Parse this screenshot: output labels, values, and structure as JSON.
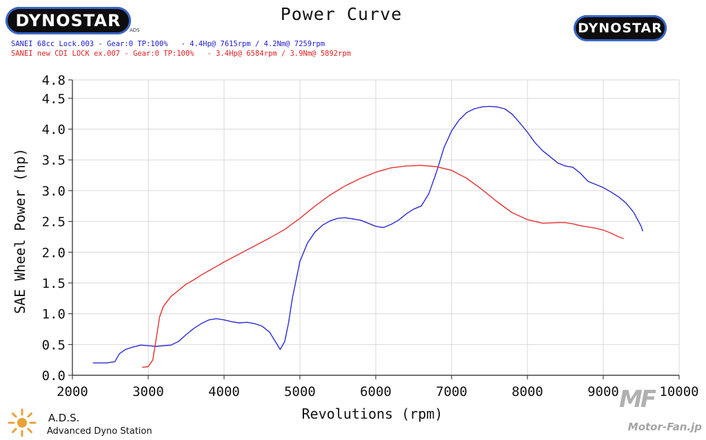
{
  "header": {
    "logo_left": "DYNOSTAR",
    "logo_left_sub": "ADS",
    "logo_right": "DYNOSTAR",
    "title": "Power Curve"
  },
  "legend": {
    "blue": "SANEI 68cc Lock.003 - Gear:0 TP:100%   - 4.4Hp@ 7615rpm / 4.2Nm@ 7259rpm",
    "red": "SANEI new CDI LOCK ex.007 - Gear:0 TP:100%   - 3.4Hp@ 6584rpm / 3.9Nm@ 5892rpm"
  },
  "footer": {
    "ads_title": "A.D.S.",
    "ads_sub": "Advanced Dyno Station",
    "watermark": "Motor-Fan.jp",
    "watermark_mark": "MF"
  },
  "chart_data": {
    "type": "line",
    "title": "Power Curve",
    "xlabel": "Revolutions (rpm)",
    "ylabel": "SAE Wheel Power (hp)",
    "xlim": [
      2000,
      10000
    ],
    "ylim": [
      0.0,
      4.8
    ],
    "xticks": [
      2000,
      3000,
      4000,
      5000,
      6000,
      7000,
      8000,
      9000,
      10000
    ],
    "yticks": [
      0.0,
      0.5,
      1.0,
      1.5,
      2.0,
      2.5,
      3.0,
      3.5,
      4.0,
      4.5,
      4.8
    ],
    "ytick_labels": [
      "0.0",
      "0.5",
      "1.0",
      "1.5",
      "2.0",
      "2.5",
      "3.0",
      "3.5",
      "4.0",
      "4.5",
      "4.8"
    ],
    "grid": true,
    "colors": {
      "blue": "#2b2bd0",
      "red": "#e83030"
    },
    "series": [
      {
        "color": "blue",
        "x": [
          2270,
          2450,
          2560,
          2620,
          2700,
          2800,
          2900,
          3000,
          3100,
          3300,
          3400,
          3500,
          3600,
          3700,
          3800,
          3900,
          4000,
          4100,
          4200,
          4300,
          4400,
          4500,
          4600,
          4700,
          4740,
          4800,
          4850,
          4900,
          5000,
          5100,
          5200,
          5300,
          5400,
          5500,
          5600,
          5700,
          5800,
          5900,
          6000,
          6100,
          6200,
          6300,
          6400,
          6500,
          6600,
          6700,
          6800,
          6900,
          7000,
          7100,
          7200,
          7300,
          7400,
          7500,
          7600,
          7700,
          7800,
          7900,
          8000,
          8100,
          8200,
          8300,
          8400,
          8500,
          8600,
          8700,
          8800,
          8900,
          9000,
          9100,
          9200,
          9300,
          9400,
          9500,
          9520
        ],
        "y": [
          0.2,
          0.2,
          0.22,
          0.35,
          0.42,
          0.46,
          0.49,
          0.48,
          0.47,
          0.49,
          0.55,
          0.66,
          0.76,
          0.84,
          0.9,
          0.92,
          0.9,
          0.87,
          0.85,
          0.86,
          0.84,
          0.8,
          0.7,
          0.5,
          0.42,
          0.55,
          0.85,
          1.25,
          1.85,
          2.15,
          2.33,
          2.44,
          2.51,
          2.55,
          2.56,
          2.54,
          2.52,
          2.47,
          2.42,
          2.4,
          2.45,
          2.52,
          2.62,
          2.7,
          2.75,
          2.95,
          3.3,
          3.7,
          3.97,
          4.15,
          4.27,
          4.33,
          4.36,
          4.37,
          4.36,
          4.33,
          4.24,
          4.1,
          3.95,
          3.78,
          3.65,
          3.55,
          3.45,
          3.4,
          3.38,
          3.28,
          3.15,
          3.1,
          3.05,
          2.98,
          2.9,
          2.8,
          2.65,
          2.42,
          2.34
        ]
      },
      {
        "color": "red",
        "x": [
          2920,
          3000,
          3060,
          3100,
          3150,
          3200,
          3300,
          3400,
          3500,
          3600,
          3700,
          3800,
          3900,
          4000,
          4200,
          4400,
          4600,
          4800,
          5000,
          5200,
          5400,
          5600,
          5800,
          6000,
          6200,
          6400,
          6600,
          6800,
          7000,
          7200,
          7400,
          7600,
          7800,
          8000,
          8200,
          8400,
          8500,
          8600,
          8700,
          8800,
          8900,
          9000,
          9100,
          9200,
          9270
        ],
        "y": [
          0.13,
          0.14,
          0.25,
          0.55,
          0.95,
          1.12,
          1.28,
          1.38,
          1.48,
          1.55,
          1.63,
          1.7,
          1.77,
          1.84,
          1.97,
          2.1,
          2.23,
          2.37,
          2.55,
          2.75,
          2.93,
          3.08,
          3.2,
          3.3,
          3.37,
          3.4,
          3.41,
          3.39,
          3.33,
          3.2,
          3.02,
          2.82,
          2.64,
          2.53,
          2.47,
          2.48,
          2.48,
          2.46,
          2.43,
          2.41,
          2.39,
          2.36,
          2.31,
          2.25,
          2.22
        ]
      }
    ]
  }
}
